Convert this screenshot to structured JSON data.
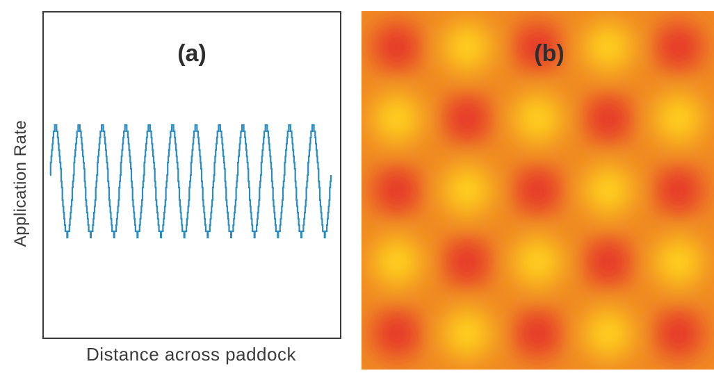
{
  "chart_data": [
    {
      "panel": "(a)",
      "type": "line",
      "title": "(a)",
      "xlabel": "Distance across paddock",
      "ylabel": "Application Rate",
      "series_shape": "square-wave approximation of a sine (stepped)",
      "cycles": 12,
      "amplitude_relative": 1.0,
      "color": "#2a8cc0"
    },
    {
      "panel": "(b)",
      "type": "heatmap",
      "title": "(b)",
      "rows": 5,
      "cols": 5,
      "pattern": "checkerboard",
      "values": [
        [
          1,
          0,
          1,
          0,
          1
        ],
        [
          0,
          1,
          0,
          1,
          0
        ],
        [
          1,
          0,
          1,
          0,
          1
        ],
        [
          0,
          1,
          0,
          1,
          0
        ],
        [
          1,
          0,
          1,
          0,
          1
        ]
      ],
      "value_meaning": "1 = high (red), 0 = low (yellow)",
      "colors": {
        "high": "#e5352a",
        "mid": "#f08a23",
        "low": "#ffd21c"
      }
    }
  ]
}
